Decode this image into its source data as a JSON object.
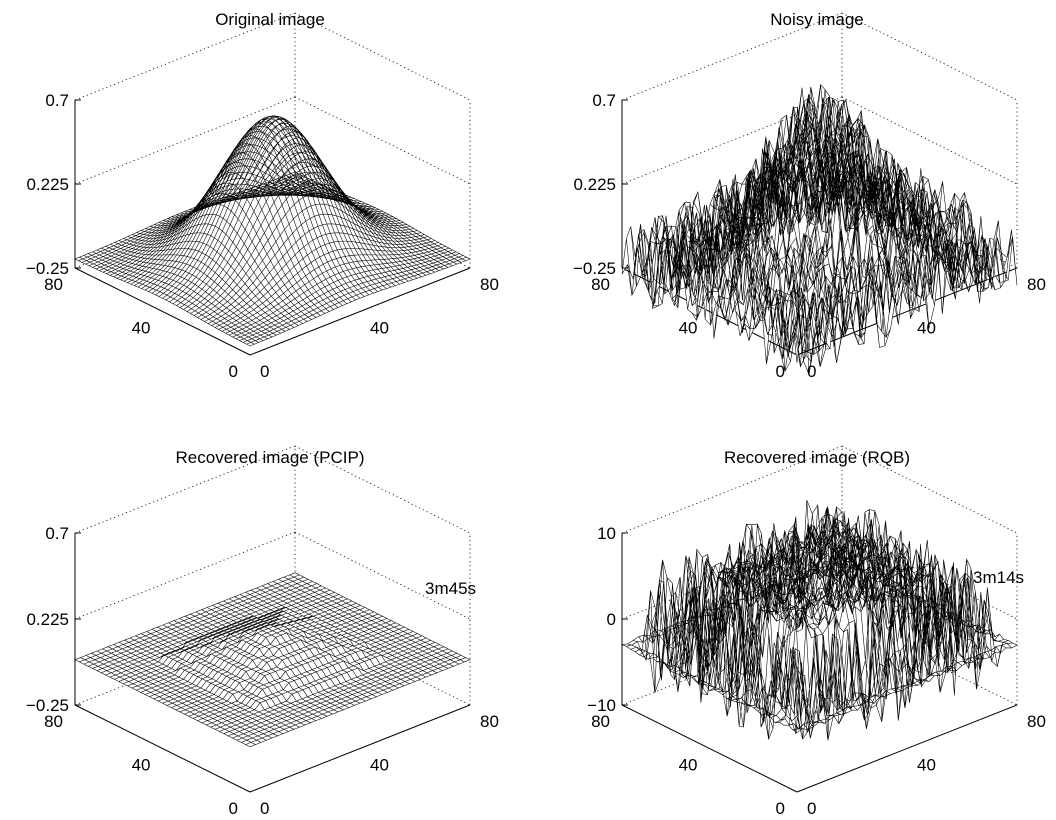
{
  "chart_data": [
    {
      "type": "surface",
      "title": "Original image",
      "surface": "smooth-gaussian",
      "grid": true,
      "xlim": [
        0,
        80
      ],
      "ylim": [
        0,
        80
      ],
      "zlim": [
        -0.25,
        0.7
      ],
      "xticks": [
        "0",
        "40",
        "80"
      ],
      "yticks": [
        "0",
        "40",
        "80"
      ],
      "zticks": [
        "0.7",
        "0.225",
        "−0.25"
      ],
      "peak": 0.6,
      "base": -0.2,
      "annotation": ""
    },
    {
      "type": "surface",
      "title": "Noisy image",
      "surface": "noisy-gaussian",
      "grid": true,
      "xlim": [
        0,
        80
      ],
      "ylim": [
        0,
        80
      ],
      "zlim": [
        -0.25,
        0.7
      ],
      "xticks": [
        "0",
        "40",
        "80"
      ],
      "yticks": [
        "0",
        "40",
        "80"
      ],
      "zticks": [
        "0.7",
        "0.225",
        "−0.25"
      ],
      "peak": 0.6,
      "base": -0.2,
      "annotation": ""
    },
    {
      "type": "surface",
      "title": "Recovered image (PCIP)",
      "surface": "terraced-plateau",
      "grid": true,
      "xlim": [
        0,
        80
      ],
      "ylim": [
        0,
        80
      ],
      "zlim": [
        -0.25,
        0.7
      ],
      "xticks": [
        "0",
        "40",
        "80"
      ],
      "yticks": [
        "0",
        "40",
        "80"
      ],
      "zticks": [
        "0.7",
        "0.225",
        "−0.25"
      ],
      "peak": 0.16,
      "base": 0,
      "annotation": "3m45s"
    },
    {
      "type": "surface",
      "title": "Recovered image (RQB)",
      "surface": "oscillating-plateau",
      "grid": true,
      "xlim": [
        0,
        80
      ],
      "ylim": [
        0,
        80
      ],
      "zlim": [
        -10,
        10
      ],
      "xticks": [
        "0",
        "40",
        "80"
      ],
      "yticks": [
        "0",
        "40",
        "80"
      ],
      "zticks": [
        "10",
        "0",
        "−10"
      ],
      "peak": 8,
      "base": -3,
      "annotation": "3m14s"
    }
  ]
}
